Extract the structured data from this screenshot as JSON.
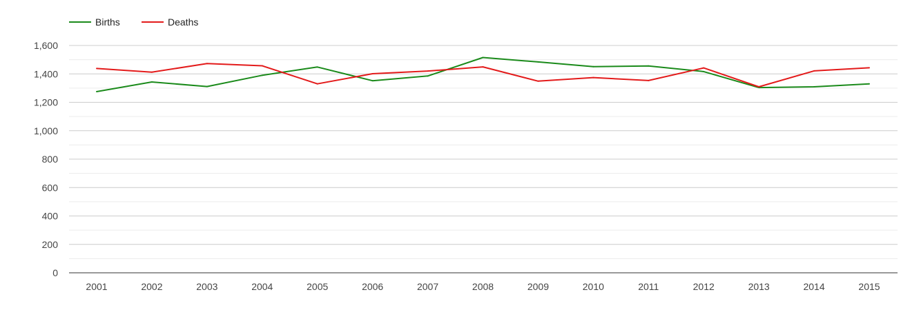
{
  "chart_data": {
    "type": "line",
    "title": "",
    "xlabel": "",
    "ylabel": "",
    "categories": [
      "2001",
      "2002",
      "2003",
      "2004",
      "2005",
      "2006",
      "2007",
      "2008",
      "2009",
      "2010",
      "2011",
      "2012",
      "2013",
      "2014",
      "2015"
    ],
    "ylim": [
      0,
      1600
    ],
    "yticks": [
      0,
      200,
      400,
      600,
      800,
      1000,
      1200,
      1400,
      1600
    ],
    "ytick_labels": [
      "0",
      "200",
      "400",
      "600",
      "800",
      "1,000",
      "1,200",
      "1,400",
      "1,600"
    ],
    "grid": true,
    "legend_position": "top-left",
    "series": [
      {
        "name": "Births",
        "color": "#1a8a1a",
        "values": [
          1275,
          1343,
          1311,
          1390,
          1448,
          1352,
          1385,
          1515,
          1484,
          1451,
          1456,
          1416,
          1304,
          1309,
          1330
        ]
      },
      {
        "name": "Deaths",
        "color": "#e31a1a",
        "values": [
          1438,
          1412,
          1473,
          1457,
          1330,
          1401,
          1420,
          1449,
          1349,
          1374,
          1353,
          1442,
          1309,
          1421,
          1443
        ]
      }
    ]
  }
}
